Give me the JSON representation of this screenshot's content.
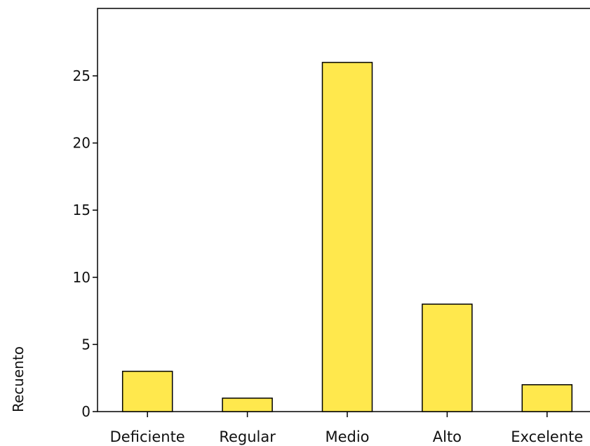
{
  "chart_data": {
    "type": "bar",
    "categories": [
      "Deficiente",
      "Regular",
      "Medio",
      "Alto",
      "Excelente"
    ],
    "values": [
      3,
      1,
      26,
      8,
      2
    ],
    "ylabel": "Recuento",
    "ylim": [
      0,
      30
    ],
    "yticks": [
      0,
      5,
      10,
      15,
      20,
      25
    ],
    "bar_color": "#FFE84D",
    "grid": false
  }
}
